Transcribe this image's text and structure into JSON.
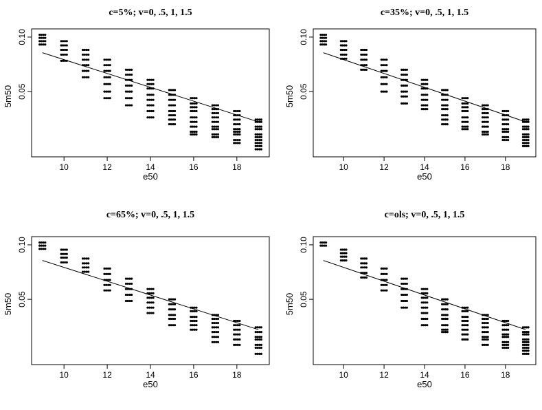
{
  "chart_data": [
    {
      "type": "scatter",
      "title": "c=5%; v=0, .5, 1, 1.5",
      "xlabel": "e50",
      "ylabel": "5m50",
      "xlim": [
        8.5,
        19.5
      ],
      "ylim_log": [
        0.0218,
        0.111
      ],
      "xticks": [
        "10",
        "12",
        "14",
        "16",
        "18"
      ],
      "yticks": [
        "0.05",
        "0.10"
      ],
      "grid": false,
      "legend": "none",
      "line": {
        "x": [
          9,
          19
        ],
        "y": [
          0.082,
          0.034
        ]
      },
      "columns": [
        {
          "x": 9,
          "values": [
            0.103,
            0.099,
            0.095,
            0.091
          ]
        },
        {
          "x": 10,
          "values": [
            0.095,
            0.09,
            0.085,
            0.08,
            0.074
          ]
        },
        {
          "x": 11,
          "values": [
            0.085,
            0.08,
            0.075,
            0.07,
            0.065,
            0.06
          ]
        },
        {
          "x": 12,
          "values": [
            0.075,
            0.07,
            0.065,
            0.06,
            0.055,
            0.05,
            0.046
          ]
        },
        {
          "x": 13,
          "values": [
            0.066,
            0.062,
            0.058,
            0.054,
            0.05,
            0.046,
            0.042
          ]
        },
        {
          "x": 14,
          "values": [
            0.058,
            0.055,
            0.052,
            0.048,
            0.045,
            0.042,
            0.039,
            0.036
          ]
        },
        {
          "x": 15,
          "values": [
            0.051,
            0.048,
            0.045,
            0.042,
            0.039,
            0.037,
            0.035,
            0.033
          ]
        },
        {
          "x": 16,
          "values": [
            0.046,
            0.043,
            0.041,
            0.039,
            0.036,
            0.034,
            0.032,
            0.03,
            0.029
          ]
        },
        {
          "x": 17,
          "values": [
            0.042,
            0.04,
            0.038,
            0.036,
            0.034,
            0.032,
            0.031,
            0.029,
            0.028
          ]
        },
        {
          "x": 18,
          "values": [
            0.039,
            0.037,
            0.035,
            0.033,
            0.031,
            0.03,
            0.029,
            0.027,
            0.026
          ]
        },
        {
          "x": 19,
          "values": [
            0.035,
            0.034,
            0.032,
            0.031,
            0.029,
            0.028,
            0.027,
            0.026,
            0.025,
            0.024
          ]
        }
      ]
    },
    {
      "type": "scatter",
      "title": "c=35%; v=0, .5, 1, 1.5",
      "xlabel": "e50",
      "ylabel": "5m50",
      "xlim": [
        8.5,
        19.5
      ],
      "ylim_log": [
        0.0218,
        0.111
      ],
      "xticks": [
        "10",
        "12",
        "14",
        "16",
        "18"
      ],
      "yticks": [
        "0.05",
        "0.10"
      ],
      "grid": false,
      "legend": "none",
      "line": {
        "x": [
          9,
          19
        ],
        "y": [
          0.082,
          0.034
        ]
      },
      "columns": [
        {
          "x": 9,
          "values": [
            0.103,
            0.099,
            0.095,
            0.091
          ]
        },
        {
          "x": 10,
          "values": [
            0.095,
            0.09,
            0.085,
            0.08,
            0.076
          ]
        },
        {
          "x": 11,
          "values": [
            0.085,
            0.08,
            0.075,
            0.07,
            0.066
          ]
        },
        {
          "x": 12,
          "values": [
            0.075,
            0.07,
            0.065,
            0.06,
            0.055,
            0.05
          ]
        },
        {
          "x": 13,
          "values": [
            0.066,
            0.062,
            0.058,
            0.054,
            0.05,
            0.047,
            0.043
          ]
        },
        {
          "x": 14,
          "values": [
            0.058,
            0.055,
            0.052,
            0.048,
            0.045,
            0.042,
            0.04
          ]
        },
        {
          "x": 15,
          "values": [
            0.051,
            0.048,
            0.045,
            0.042,
            0.04,
            0.037,
            0.035,
            0.033
          ]
        },
        {
          "x": 16,
          "values": [
            0.046,
            0.043,
            0.041,
            0.039,
            0.036,
            0.034,
            0.032,
            0.031
          ]
        },
        {
          "x": 17,
          "values": [
            0.042,
            0.04,
            0.038,
            0.036,
            0.034,
            0.032,
            0.03,
            0.029
          ]
        },
        {
          "x": 18,
          "values": [
            0.039,
            0.037,
            0.035,
            0.033,
            0.031,
            0.03,
            0.028,
            0.027
          ]
        },
        {
          "x": 19,
          "values": [
            0.035,
            0.034,
            0.032,
            0.031,
            0.029,
            0.028,
            0.027,
            0.026,
            0.025
          ]
        }
      ]
    },
    {
      "type": "scatter",
      "title": "c=65%; v=0, .5, 1, 1.5",
      "xlabel": "e50",
      "ylabel": "5m50",
      "xlim": [
        8.5,
        19.5
      ],
      "ylim_log": [
        0.0218,
        0.111
      ],
      "xticks": [
        "10",
        "12",
        "14",
        "16",
        "18"
      ],
      "yticks": [
        "0.05",
        "0.10"
      ],
      "grid": false,
      "legend": "none",
      "line": {
        "x": [
          9,
          19
        ],
        "y": [
          0.082,
          0.034
        ]
      },
      "columns": [
        {
          "x": 9,
          "values": [
            0.103,
            0.099,
            0.095
          ]
        },
        {
          "x": 10,
          "values": [
            0.094,
            0.089,
            0.085,
            0.08
          ]
        },
        {
          "x": 11,
          "values": [
            0.084,
            0.079,
            0.075,
            0.071
          ]
        },
        {
          "x": 12,
          "values": [
            0.074,
            0.069,
            0.064,
            0.06,
            0.056
          ]
        },
        {
          "x": 13,
          "values": [
            0.065,
            0.061,
            0.057,
            0.053,
            0.049
          ]
        },
        {
          "x": 14,
          "values": [
            0.057,
            0.054,
            0.051,
            0.048,
            0.045,
            0.042
          ]
        },
        {
          "x": 15,
          "values": [
            0.05,
            0.047,
            0.044,
            0.041,
            0.039,
            0.036
          ]
        },
        {
          "x": 16,
          "values": [
            0.045,
            0.043,
            0.04,
            0.038,
            0.036,
            0.034
          ]
        },
        {
          "x": 17,
          "values": [
            0.041,
            0.039,
            0.037,
            0.035,
            0.033,
            0.031,
            0.029
          ]
        },
        {
          "x": 18,
          "values": [
            0.038,
            0.036,
            0.034,
            0.032,
            0.03,
            0.028
          ]
        },
        {
          "x": 19,
          "values": [
            0.035,
            0.033,
            0.031,
            0.03,
            0.028,
            0.027,
            0.025
          ]
        }
      ]
    },
    {
      "type": "scatter",
      "title": "c=ols; v=0, .5, 1, 1.5",
      "xlabel": "e50",
      "ylabel": "5m50",
      "xlim": [
        8.5,
        19.5
      ],
      "ylim_log": [
        0.0218,
        0.111
      ],
      "xticks": [
        "10",
        "12",
        "14",
        "16",
        "18"
      ],
      "yticks": [
        "0.05",
        "0.10"
      ],
      "grid": false,
      "legend": "none",
      "line": {
        "x": [
          9,
          19
        ],
        "y": [
          0.082,
          0.034
        ]
      },
      "columns": [
        {
          "x": 9,
          "values": [
            0.103,
            0.099
          ]
        },
        {
          "x": 10,
          "values": [
            0.094,
            0.09,
            0.086,
            0.082
          ]
        },
        {
          "x": 11,
          "values": [
            0.084,
            0.079,
            0.075,
            0.07,
            0.066
          ]
        },
        {
          "x": 12,
          "values": [
            0.074,
            0.069,
            0.064,
            0.06,
            0.056
          ]
        },
        {
          "x": 13,
          "values": [
            0.065,
            0.061,
            0.057,
            0.053,
            0.049,
            0.045
          ]
        },
        {
          "x": 14,
          "values": [
            0.057,
            0.054,
            0.051,
            0.048,
            0.045,
            0.042,
            0.039,
            0.036
          ]
        },
        {
          "x": 15,
          "values": [
            0.05,
            0.047,
            0.044,
            0.041,
            0.039,
            0.036,
            0.034,
            0.033
          ]
        },
        {
          "x": 16,
          "values": [
            0.045,
            0.043,
            0.04,
            0.038,
            0.036,
            0.034,
            0.032,
            0.03
          ]
        },
        {
          "x": 17,
          "values": [
            0.041,
            0.039,
            0.037,
            0.035,
            0.033,
            0.031,
            0.03,
            0.028
          ]
        },
        {
          "x": 18,
          "values": [
            0.038,
            0.036,
            0.034,
            0.032,
            0.031,
            0.029,
            0.028,
            0.027
          ]
        },
        {
          "x": 19,
          "values": [
            0.035,
            0.033,
            0.032,
            0.03,
            0.029,
            0.028,
            0.027,
            0.026,
            0.025
          ]
        }
      ]
    }
  ]
}
